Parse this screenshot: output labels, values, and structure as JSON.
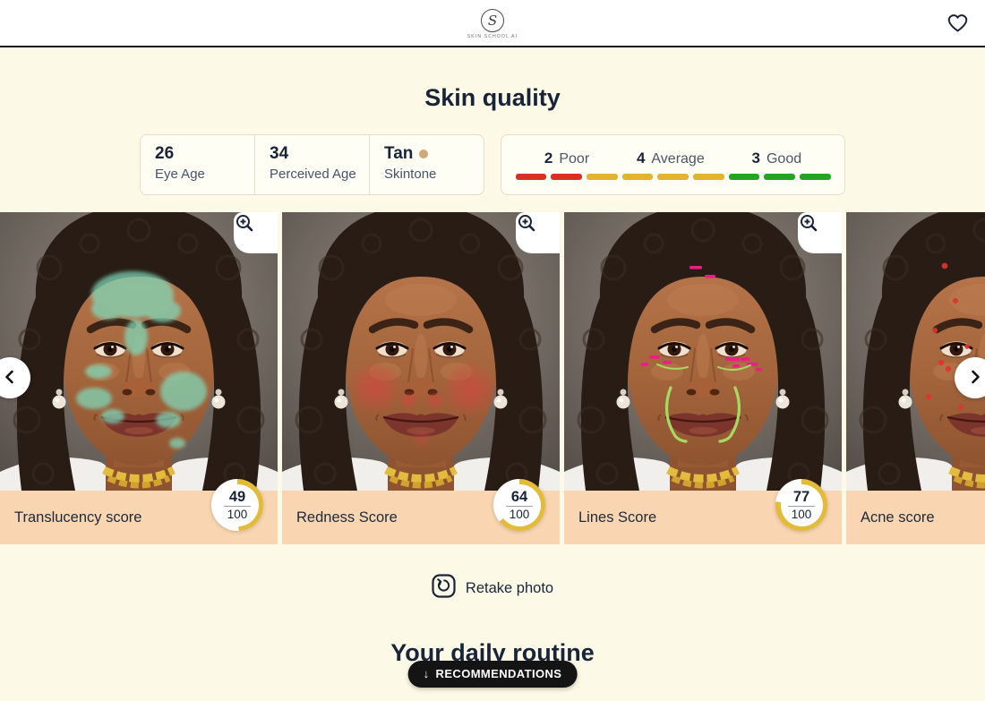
{
  "colors": {
    "ring_gold": "#E3BB39",
    "peach_bar": "#F9D6B1",
    "tan_dot": "#D2A77C",
    "poor_red": "#D93025",
    "average_yellow": "#E0B42C",
    "good_green": "#23A523",
    "pill_black": "#141414"
  },
  "header": {
    "brand_letter": "S",
    "brand_name": "SKIN SCHOOL AI",
    "heart_icon": "heart-outline"
  },
  "page": {
    "title": "Skin quality",
    "routine_heading": "Your daily routine"
  },
  "stats": {
    "items": [
      {
        "value": "26",
        "label": "Eye Age"
      },
      {
        "value": "34",
        "label": "Perceived Age"
      },
      {
        "value": "Tan",
        "label": "Skintone",
        "swatch": "#D2A77C"
      }
    ]
  },
  "legend": {
    "items": [
      {
        "count": "2",
        "label": "Poor",
        "color": "#D93025",
        "segments": 2
      },
      {
        "count": "4",
        "label": "Average",
        "color": "#E0B42C",
        "segments": 4
      },
      {
        "count": "3",
        "label": "Good",
        "color": "#23A523",
        "segments": 3
      }
    ]
  },
  "carousel": {
    "slides": [
      {
        "label": "Translucency score",
        "score": "49",
        "total": "100"
      },
      {
        "label": "Redness Score",
        "score": "64",
        "total": "100"
      },
      {
        "label": "Lines Score",
        "score": "77",
        "total": "100"
      },
      {
        "label": "Acne score",
        "score": "",
        "total": ""
      }
    ]
  },
  "actions": {
    "retake": "Retake photo",
    "recommendations": "RECOMMENDATIONS"
  }
}
